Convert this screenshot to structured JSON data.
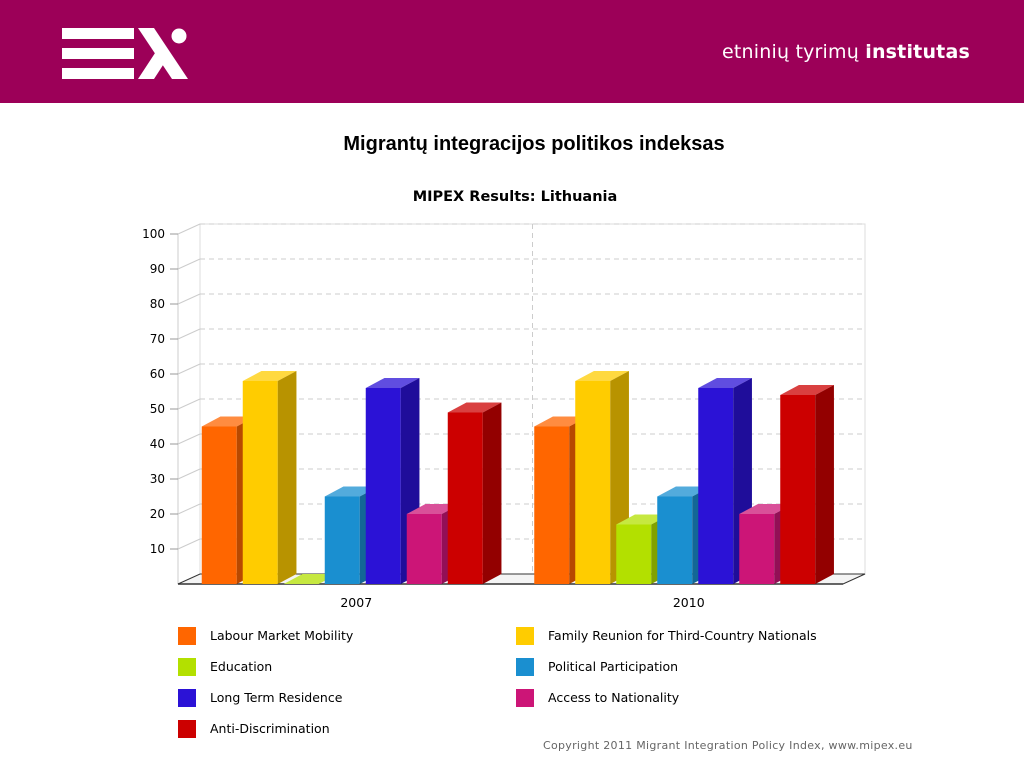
{
  "header": {
    "brand_light": "etninių tyrimų",
    "brand_bold": "institutas",
    "color": "#9c0058"
  },
  "slide": {
    "title": "Migrantų integracijos politikos indeksas"
  },
  "chart_data": {
    "type": "bar",
    "title": "MIPEX Results: Lithuania",
    "xlabel": "",
    "ylabel": "",
    "ylim": [
      0,
      100
    ],
    "yticks": [
      10,
      20,
      30,
      40,
      50,
      60,
      70,
      80,
      90,
      100
    ],
    "grid": true,
    "legend_position": "bottom",
    "categories": [
      "2007",
      "2010"
    ],
    "series": [
      {
        "name": "Labour Market Mobility",
        "color": "#ff6600",
        "values": [
          45,
          45
        ]
      },
      {
        "name": "Family Reunion for Third-Country Nationals",
        "color": "#ffcc00",
        "values": [
          58,
          58
        ]
      },
      {
        "name": "Education",
        "color": "#b3e000",
        "values": [
          0,
          17
        ]
      },
      {
        "name": "Political Participation",
        "color": "#1a8fd0",
        "values": [
          25,
          25
        ]
      },
      {
        "name": "Long Term Residence",
        "color": "#2b12d6",
        "values": [
          56,
          56
        ]
      },
      {
        "name": "Access to Nationality",
        "color": "#cc1577",
        "values": [
          20,
          20
        ]
      },
      {
        "name": "Anti-Discrimination",
        "color": "#cc0000",
        "values": [
          49,
          54
        ]
      }
    ],
    "legend_order": [
      "Labour Market Mobility",
      "Family Reunion for Third-Country Nationals",
      "Education",
      "Political Participation",
      "Long Term Residence",
      "Access to Nationality",
      "Anti-Discrimination"
    ]
  },
  "footer": {
    "copyright": "Copyright 2011 Migrant Integration Policy Index, www.mipex.eu"
  }
}
